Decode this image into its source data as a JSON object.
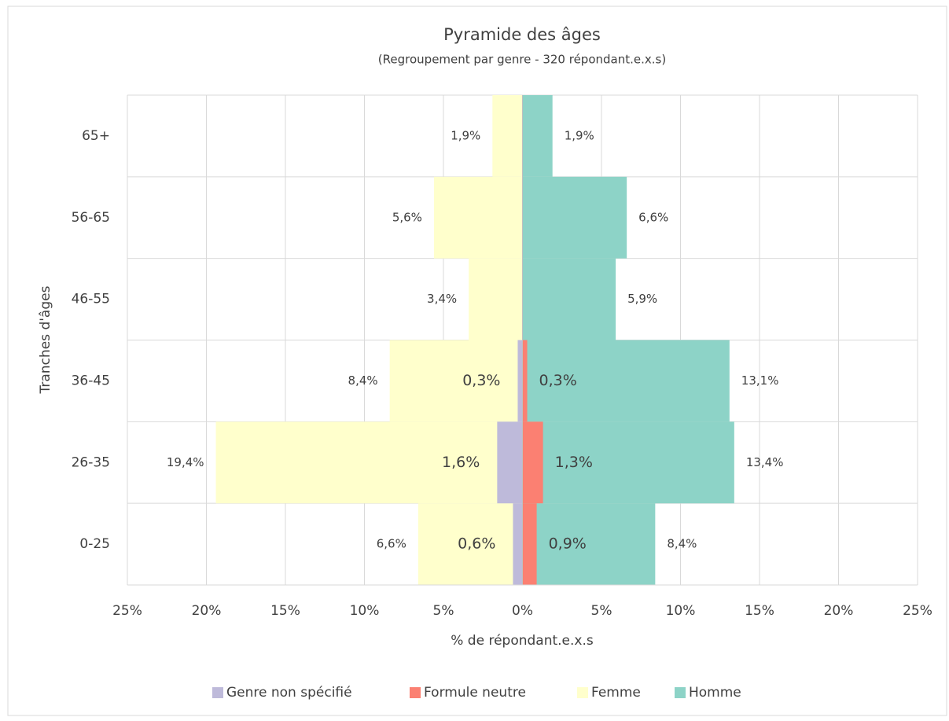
{
  "chart_data": {
    "type": "bar",
    "orientation": "horizontal",
    "title": "Pyramide des âges",
    "subtitle": "(Regroupement par genre - 320 répondant.e.x.s)",
    "x_label": "% de répondant.e.x.s",
    "y_label": "Tranches d'âges",
    "categories": [
      "65+",
      "56-65",
      "46-55",
      "36-45",
      "26-35",
      "0-25"
    ],
    "series": [
      {
        "name": "Genre non spécifié",
        "color": "#bebada",
        "values": [
          null,
          null,
          null,
          -0.3,
          -1.6,
          -0.6
        ],
        "value_labels": [
          null,
          null,
          null,
          "0,3%",
          "1,6%",
          "0,6%"
        ]
      },
      {
        "name": "Formule neutre",
        "color": "#fb8072",
        "values": [
          null,
          null,
          null,
          0.3,
          1.3,
          0.9
        ],
        "value_labels": [
          null,
          null,
          null,
          "0,3%",
          "1,3%",
          "0,9%"
        ]
      },
      {
        "name": "Femme",
        "color": "#ffffcc",
        "values": [
          -1.9,
          -5.6,
          -3.4,
          -8.4,
          -19.4,
          -6.6
        ],
        "value_labels": [
          "1,9%",
          "5,6%",
          "3,4%",
          "8,4%",
          "19,4%",
          "6,6%"
        ]
      },
      {
        "name": "Homme",
        "color": "#8dd3c7",
        "values": [
          1.9,
          6.6,
          5.9,
          13.1,
          13.4,
          8.4
        ],
        "value_labels": [
          "1,9%",
          "6,6%",
          "5,9%",
          "13,1%",
          "13,4%",
          "8,4%"
        ]
      }
    ],
    "xlim": [
      -25,
      25
    ],
    "xticks": [
      {
        "value": -25,
        "label": "25%"
      },
      {
        "value": -20,
        "label": "20%"
      },
      {
        "value": -15,
        "label": "15%"
      },
      {
        "value": -10,
        "label": "10%"
      },
      {
        "value": -5,
        "label": "5%"
      },
      {
        "value": 0,
        "label": "0%"
      },
      {
        "value": 5,
        "label": "5%"
      },
      {
        "value": 10,
        "label": "10%"
      },
      {
        "value": 15,
        "label": "15%"
      },
      {
        "value": 20,
        "label": "20%"
      },
      {
        "value": 25,
        "label": "25%"
      }
    ],
    "grid": true,
    "legend": "bottom"
  }
}
